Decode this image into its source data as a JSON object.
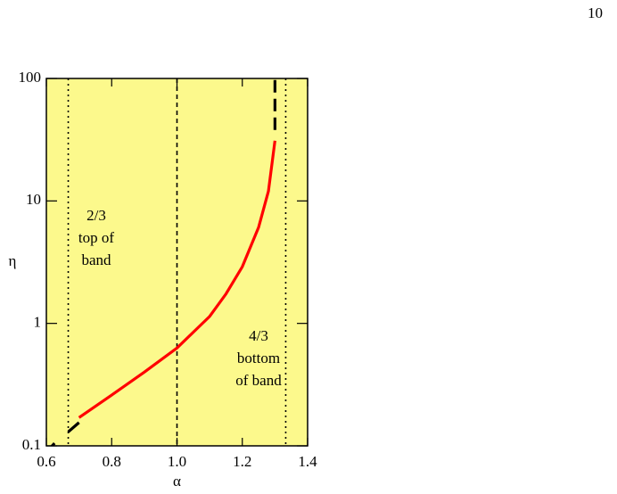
{
  "page_number": "10",
  "chart_data": {
    "type": "line",
    "xlabel": "α",
    "ylabel": "η",
    "xlim": [
      0.6,
      1.4
    ],
    "ylim": [
      0.1,
      100
    ],
    "log_y": true,
    "background": "#fcf98c",
    "xticks": [
      0.6,
      0.8,
      {
        "value": 1,
        "label": "1.0"
      },
      1.2,
      1.4
    ],
    "yticks": [
      0.1,
      1,
      10,
      100
    ],
    "vlines": [
      {
        "x": 0.667,
        "style": "dotted"
      },
      {
        "x": 1,
        "style": "dashed"
      },
      {
        "x": 1.333,
        "style": "dotted"
      }
    ],
    "series": [
      {
        "color": "#ff0000",
        "style": "solid",
        "x": [
          0.7,
          0.8,
          0.9,
          1.0,
          1.1,
          1.15,
          1.2,
          1.25,
          1.28,
          1.3
        ],
        "values": [
          0.17,
          0.26,
          0.4,
          0.63,
          1.14,
          1.74,
          2.9,
          6.1,
          12,
          31
        ]
      },
      {
        "color": "#000000",
        "style": "solid",
        "x": [
          0.61,
          0.625,
          null,
          0.667,
          0.7
        ],
        "values": [
          0.095,
          0.105,
          null,
          0.13,
          0.155
        ]
      },
      {
        "color": "#000000",
        "style": "dashed",
        "x": [
          1.3,
          1.3
        ],
        "values": [
          38,
          100
        ]
      }
    ],
    "annotations": [
      {
        "lines": [
          "2/3",
          "top of",
          "band"
        ]
      },
      {
        "lines": [
          "4/3",
          "bottom",
          "of band"
        ]
      }
    ]
  }
}
